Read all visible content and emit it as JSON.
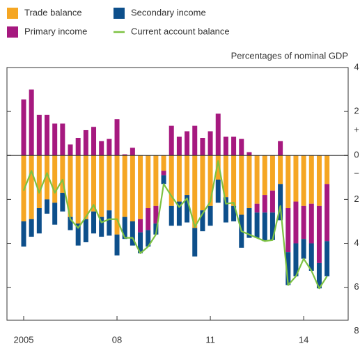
{
  "chart_data": {
    "type": "stacked-bar-line",
    "unit_label": "Percentages of nominal GDP",
    "sign_labels": {
      "positive": "+",
      "negative": "−"
    },
    "categories": [
      "2005",
      null,
      null,
      null,
      null,
      null,
      null,
      null,
      null,
      null,
      null,
      null,
      "08",
      null,
      null,
      null,
      null,
      null,
      null,
      null,
      null,
      null,
      null,
      null,
      "11",
      null,
      null,
      null,
      null,
      null,
      null,
      null,
      null,
      null,
      null,
      null,
      "14",
      null,
      null,
      null
    ],
    "series": [
      {
        "name": "Trade balance",
        "color": "#f5a623",
        "kind": "bar",
        "values": [
          -3.0,
          -2.9,
          -2.4,
          -2.0,
          -2.15,
          -1.7,
          -2.8,
          -3.1,
          -2.9,
          -2.55,
          -2.8,
          -2.5,
          -3.6,
          -2.8,
          -3.0,
          -2.9,
          -2.4,
          -2.3,
          -0.7,
          -2.3,
          -2.1,
          -1.8,
          -3.3,
          -2.5,
          -2.3,
          -1.1,
          -1.9,
          -2.3,
          -2.7,
          -2.4,
          -2.2,
          -1.8,
          -1.6,
          -1.3,
          -2.4,
          -2.1,
          -2.3,
          -2.2,
          -2.3,
          -1.3
        ]
      },
      {
        "name": "Primary income",
        "color": "#a6197f",
        "kind": "bar",
        "values": [
          2.55,
          3.0,
          1.85,
          1.85,
          1.45,
          1.45,
          0.5,
          0.8,
          1.15,
          1.3,
          0.65,
          0.75,
          1.65,
          0.05,
          0.35,
          -0.6,
          -1.0,
          -0.8,
          -0.2,
          1.35,
          0.85,
          1.1,
          1.35,
          0.8,
          1.1,
          1.9,
          0.85,
          0.85,
          0.75,
          0.15,
          -0.4,
          -0.8,
          -1.0,
          0.65,
          -2.0,
          -1.9,
          -1.5,
          -1.8,
          -2.6,
          -2.6
        ]
      },
      {
        "name": "Secondary income",
        "color": "#0d4f8b",
        "kind": "bar",
        "values": [
          -1.15,
          -0.8,
          -1.15,
          -0.65,
          -1.0,
          -0.85,
          -0.6,
          -1.0,
          -1.05,
          -1.0,
          -0.9,
          -1.15,
          -0.95,
          -1.0,
          -1.1,
          -0.95,
          -0.75,
          -0.5,
          -0.4,
          -0.9,
          -1.1,
          -1.25,
          -1.3,
          -0.95,
          -0.9,
          -1.05,
          -1.15,
          -0.7,
          -1.5,
          -1.35,
          -1.15,
          -1.3,
          -1.25,
          -1.65,
          -1.5,
          -1.5,
          -0.9,
          -1.25,
          -1.15,
          -1.6
        ]
      },
      {
        "name": "Current account balance",
        "color": "#7dc242",
        "kind": "line",
        "values": [
          -1.6,
          -0.7,
          -1.7,
          -0.8,
          -1.7,
          -1.1,
          -2.9,
          -3.3,
          -2.8,
          -2.25,
          -3.05,
          -2.9,
          -2.9,
          -3.75,
          -3.75,
          -4.45,
          -4.15,
          -3.6,
          -1.3,
          -1.85,
          -2.35,
          -1.95,
          -3.25,
          -2.65,
          -2.1,
          -0.25,
          -2.2,
          -2.15,
          -3.45,
          -3.6,
          -3.75,
          -3.9,
          -3.85,
          -2.3,
          -5.9,
          -5.5,
          -4.7,
          -5.25,
          -6.05,
          -5.5
        ]
      }
    ],
    "ylim": [
      -7.5,
      4
    ],
    "yticks": [
      4,
      2,
      0,
      {
        "value": -2,
        "label": "2"
      },
      {
        "value": -4,
        "label": "4"
      },
      {
        "value": -6,
        "label": "6"
      },
      {
        "value": -8,
        "label": "8"
      }
    ]
  }
}
